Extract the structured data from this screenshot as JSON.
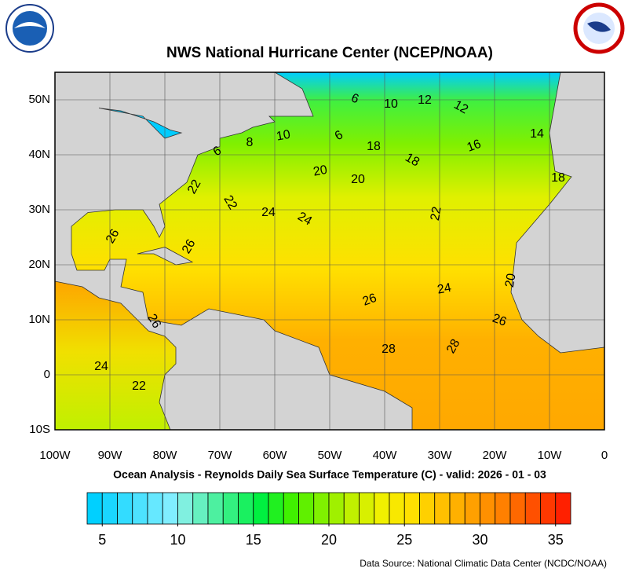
{
  "header": {
    "title": "NWS National Hurricane Center (NCEP/NOAA)"
  },
  "map": {
    "lon_range": [
      -100,
      0
    ],
    "lat_range": [
      -10,
      55
    ],
    "lon_ticks": [
      {
        "value": -100,
        "label": "100W"
      },
      {
        "value": -90,
        "label": "90W"
      },
      {
        "value": -80,
        "label": "80W"
      },
      {
        "value": -70,
        "label": "70W"
      },
      {
        "value": -60,
        "label": "60W"
      },
      {
        "value": -50,
        "label": "50W"
      },
      {
        "value": -40,
        "label": "40W"
      },
      {
        "value": -30,
        "label": "30W"
      },
      {
        "value": -20,
        "label": "20W"
      },
      {
        "value": -10,
        "label": "10W"
      },
      0
    ],
    "lat_ticks": [
      {
        "value": 50,
        "label": "50N"
      },
      {
        "value": 40,
        "label": "40N"
      },
      {
        "value": 30,
        "label": "30N"
      },
      {
        "value": 20,
        "label": "20N"
      },
      {
        "value": 10,
        "label": "10N"
      },
      0,
      {
        "value": -10,
        "label": "10S"
      }
    ],
    "grid": true,
    "contour_labels": [
      6,
      10,
      12,
      12,
      14,
      16,
      18,
      18,
      8,
      10,
      6,
      6,
      20,
      20,
      18,
      22,
      22,
      24,
      24,
      22,
      26,
      26,
      20,
      24,
      26,
      26,
      28,
      28,
      26,
      24,
      22
    ],
    "subtitle": "Ocean Analysis - Reynolds Daily Sea Surface Temperature (C) - valid: 2026 - 01 - 03"
  },
  "colorbar": {
    "range": [
      4,
      36
    ],
    "ticks": [
      5,
      10,
      15,
      20,
      25,
      30,
      35
    ],
    "colors": [
      "#00d0ff",
      "#1ad6ff",
      "#33dcff",
      "#4de2ff",
      "#66e8ff",
      "#80eeff",
      "#80f0e0",
      "#66f0c0",
      "#4df0a0",
      "#33f080",
      "#1af060",
      "#00f040",
      "#20f020",
      "#40f000",
      "#60f000",
      "#80f000",
      "#a0f000",
      "#c0f000",
      "#d8f000",
      "#f0f000",
      "#f8e800",
      "#ffe000",
      "#ffd000",
      "#ffc000",
      "#ffb000",
      "#ffa000",
      "#ff9000",
      "#ff8000",
      "#ff6800",
      "#ff5000",
      "#ff3800",
      "#ff2000"
    ]
  },
  "footer": {
    "source": "Data Source: National Climatic Data Center (NCDC/NOAA)"
  }
}
